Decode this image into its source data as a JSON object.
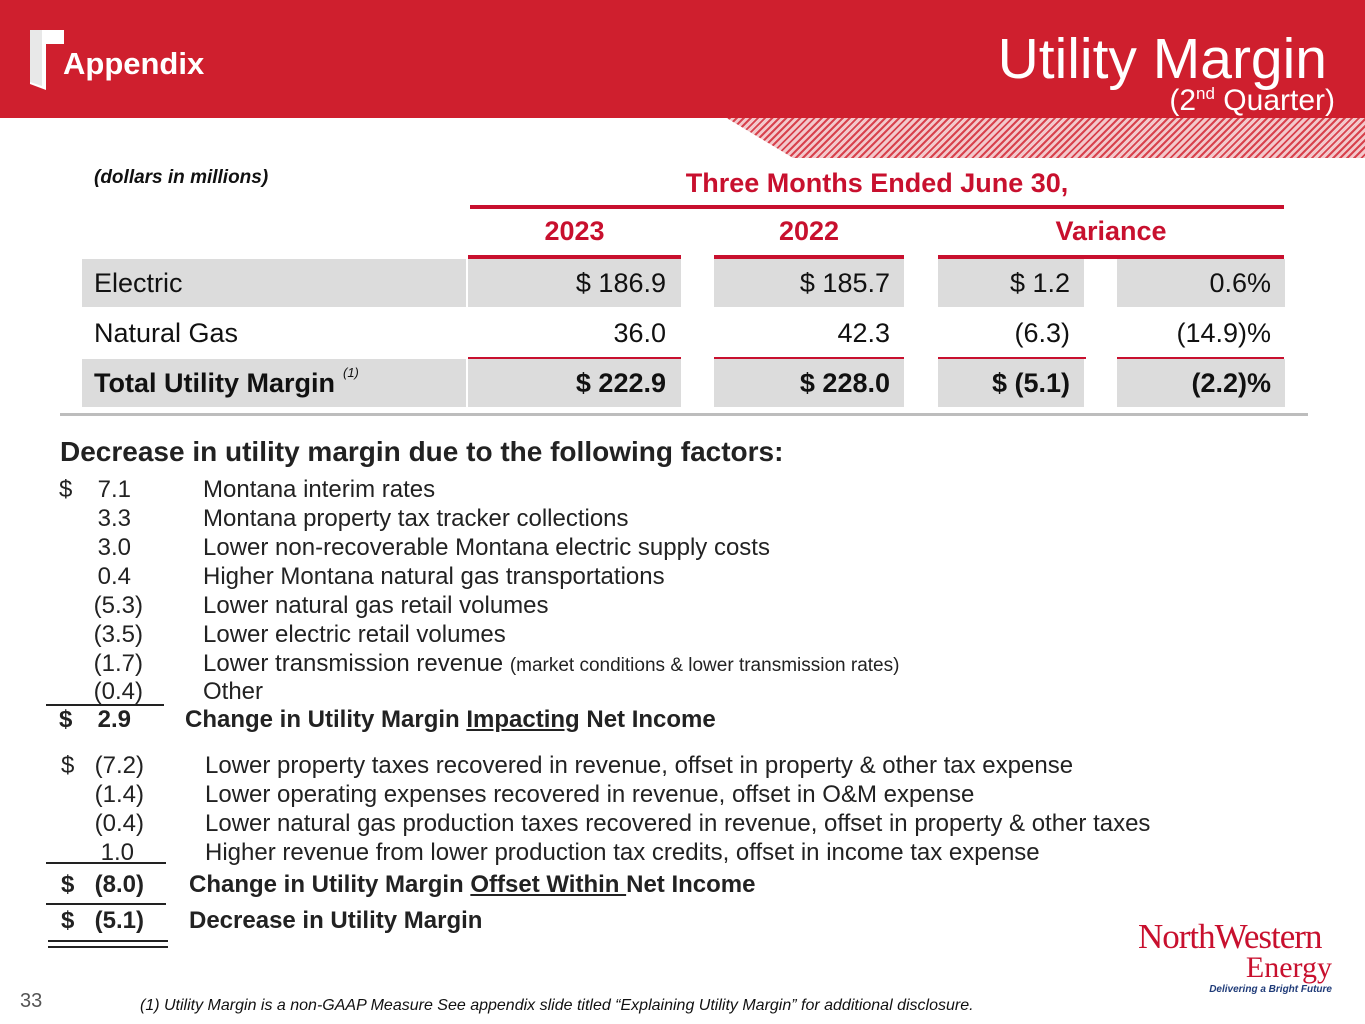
{
  "header": {
    "section": "Appendix",
    "title": "Utility Margin",
    "subtitle_pre": "(2",
    "subtitle_sup": "nd",
    "subtitle_post": " Quarter)"
  },
  "colors": {
    "brand_red": "#cf1f2e",
    "accent_red": "#c8102e",
    "row_shade": "#dcdcdc"
  },
  "table": {
    "units_note": "(dollars in millions)",
    "period": "Three Months Ended June 30,",
    "columns": [
      "2023",
      "2022",
      "Variance"
    ],
    "rows": [
      {
        "label": "Electric",
        "y2023": "$ 186.9",
        "y2022": "$ 185.7",
        "var_amt": "$ 1.2",
        "var_pct": "0.6%"
      },
      {
        "label": "Natural Gas",
        "y2023": "36.0",
        "y2022": "42.3",
        "var_amt": "(6.3)",
        "var_pct": "(14.9)%"
      },
      {
        "label": "Total Utility Margin",
        "footnote_ref": "(1)",
        "y2023": "$ 222.9",
        "y2022": "$ 228.0",
        "var_amt": "$ (5.1)",
        "var_pct": "(2.2)%"
      }
    ]
  },
  "factors": {
    "heading": "Decrease in utility margin due to the following factors:",
    "currency": "$",
    "group1": [
      {
        "amount": "7.1",
        "desc": "Montana interim rates"
      },
      {
        "amount": "3.3",
        "desc": "Montana property tax tracker collections"
      },
      {
        "amount": "3.0",
        "desc": "Lower non-recoverable Montana electric supply costs"
      },
      {
        "amount": "0.4",
        "desc": "Higher Montana natural gas transportations"
      },
      {
        "amount": "(5.3)",
        "desc": "Lower natural gas retail volumes"
      },
      {
        "amount": "(3.5)",
        "desc": "Lower electric retail volumes"
      },
      {
        "amount": "(1.7)",
        "desc": "Lower transmission revenue",
        "note": "(market conditions & lower transmission rates)"
      },
      {
        "amount": "(0.4)",
        "desc": "Other"
      }
    ],
    "subtotal1": {
      "amount": "2.9",
      "label_pre": "Change in Utility Margin ",
      "label_u": "Impacting",
      "label_post": " Net Income"
    },
    "group2": [
      {
        "amount": "(7.2)",
        "desc": "Lower property taxes recovered in revenue, offset in property & other tax expense"
      },
      {
        "amount": "(1.4)",
        "desc": "Lower operating expenses recovered in revenue, offset in O&M expense"
      },
      {
        "amount": "(0.4)",
        "desc": "Lower natural gas production taxes recovered in revenue, offset in property & other taxes"
      },
      {
        "amount": "1.0",
        "desc": "Higher revenue from lower production tax credits, offset in income tax expense"
      }
    ],
    "subtotal2": {
      "amount": "(8.0)",
      "label_pre": "Change in Utility Margin ",
      "label_u": "Offset Within ",
      "label_post": "Net Income"
    },
    "total": {
      "amount": "(5.1)",
      "label": "Decrease in Utility Margin"
    }
  },
  "footer": {
    "page_number": "33",
    "footnote": "(1) Utility Margin is a non-GAAP Measure  See appendix slide titled “Explaining Utility Margin” for additional disclosure.",
    "logo_name": "NorthWestern",
    "logo_energy": "Energy",
    "logo_tagline": "Delivering a Bright Future"
  }
}
